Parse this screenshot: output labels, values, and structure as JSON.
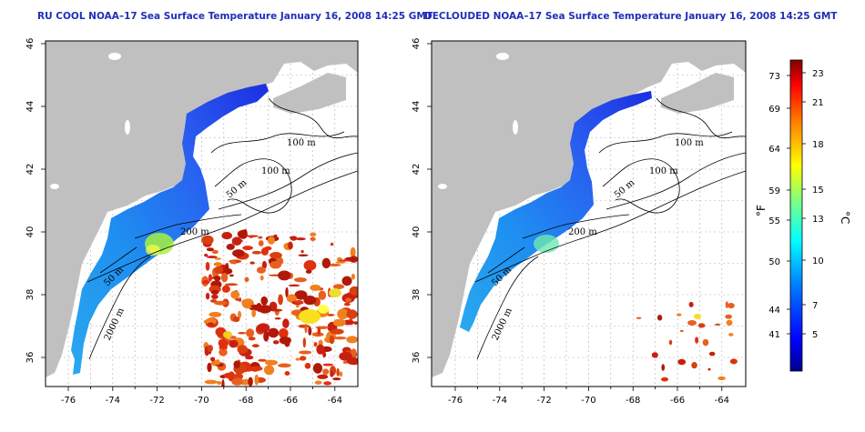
{
  "maps": [
    {
      "title": "RU COOL NOAA–17 Sea Surface Temperature January 16, 2008 14:25 GMT",
      "x_ticks": [
        "-76",
        "-74",
        "-72",
        "-70",
        "-68",
        "-66",
        "-64"
      ],
      "y_ticks": [
        "46",
        "44",
        "42",
        "40",
        "38",
        "36"
      ],
      "contour_labels": [
        "100 m",
        "100 m",
        "50 m",
        "200 m",
        "50 m",
        "2000 m"
      ]
    },
    {
      "title": "DECLOUDED NOAA–17 Sea Surface Temperature January 16, 2008 14:25 GMT",
      "x_ticks": [
        "-76",
        "-74",
        "-72",
        "-70",
        "-68",
        "-66",
        "-64"
      ],
      "y_ticks": [
        "46",
        "44",
        "42",
        "40",
        "38",
        "36"
      ],
      "contour_labels": [
        "100 m",
        "100 m",
        "50 m",
        "200 m",
        "50 m",
        "2000 m"
      ]
    }
  ],
  "colorbar": {
    "fahrenheit_labels": [
      "73",
      "69",
      "64",
      "59",
      "55",
      "50",
      "44",
      "41"
    ],
    "celsius_labels": [
      "23",
      "21",
      "18",
      "15",
      "13",
      "10",
      "7",
      "5"
    ],
    "fahrenheit_unit": "°F",
    "celsius_unit": "°C",
    "colors": [
      "#00008f",
      "#0000ff",
      "#0080ff",
      "#00ffff",
      "#80ff80",
      "#ffff00",
      "#ff8000",
      "#ff0000",
      "#800000"
    ]
  },
  "colors": {
    "land": "#c0c0c0",
    "title": "#1f2fb8",
    "grid": "#b0b0b0"
  }
}
